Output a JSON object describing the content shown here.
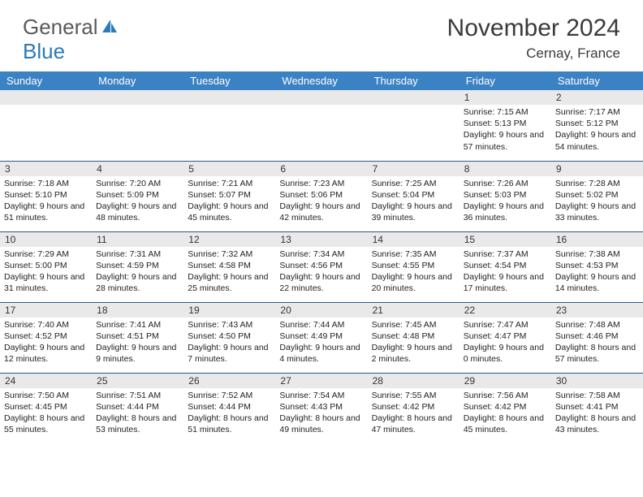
{
  "logo": {
    "part1": "General",
    "part2": "Blue"
  },
  "title": "November 2024",
  "location": "Cernay, France",
  "colors": {
    "header_bg": "#3b82c4",
    "header_fg": "#ffffff",
    "daynum_bg": "#e9e9e9",
    "row_border": "#2b5a8a",
    "logo_gray": "#5a5a5a",
    "logo_blue": "#2a7bb8"
  },
  "weekdays": [
    "Sunday",
    "Monday",
    "Tuesday",
    "Wednesday",
    "Thursday",
    "Friday",
    "Saturday"
  ],
  "weeks": [
    [
      null,
      null,
      null,
      null,
      null,
      {
        "n": "1",
        "sr": "7:15 AM",
        "ss": "5:13 PM",
        "dl": "9 hours and 57 minutes."
      },
      {
        "n": "2",
        "sr": "7:17 AM",
        "ss": "5:12 PM",
        "dl": "9 hours and 54 minutes."
      }
    ],
    [
      {
        "n": "3",
        "sr": "7:18 AM",
        "ss": "5:10 PM",
        "dl": "9 hours and 51 minutes."
      },
      {
        "n": "4",
        "sr": "7:20 AM",
        "ss": "5:09 PM",
        "dl": "9 hours and 48 minutes."
      },
      {
        "n": "5",
        "sr": "7:21 AM",
        "ss": "5:07 PM",
        "dl": "9 hours and 45 minutes."
      },
      {
        "n": "6",
        "sr": "7:23 AM",
        "ss": "5:06 PM",
        "dl": "9 hours and 42 minutes."
      },
      {
        "n": "7",
        "sr": "7:25 AM",
        "ss": "5:04 PM",
        "dl": "9 hours and 39 minutes."
      },
      {
        "n": "8",
        "sr": "7:26 AM",
        "ss": "5:03 PM",
        "dl": "9 hours and 36 minutes."
      },
      {
        "n": "9",
        "sr": "7:28 AM",
        "ss": "5:02 PM",
        "dl": "9 hours and 33 minutes."
      }
    ],
    [
      {
        "n": "10",
        "sr": "7:29 AM",
        "ss": "5:00 PM",
        "dl": "9 hours and 31 minutes."
      },
      {
        "n": "11",
        "sr": "7:31 AM",
        "ss": "4:59 PM",
        "dl": "9 hours and 28 minutes."
      },
      {
        "n": "12",
        "sr": "7:32 AM",
        "ss": "4:58 PM",
        "dl": "9 hours and 25 minutes."
      },
      {
        "n": "13",
        "sr": "7:34 AM",
        "ss": "4:56 PM",
        "dl": "9 hours and 22 minutes."
      },
      {
        "n": "14",
        "sr": "7:35 AM",
        "ss": "4:55 PM",
        "dl": "9 hours and 20 minutes."
      },
      {
        "n": "15",
        "sr": "7:37 AM",
        "ss": "4:54 PM",
        "dl": "9 hours and 17 minutes."
      },
      {
        "n": "16",
        "sr": "7:38 AM",
        "ss": "4:53 PM",
        "dl": "9 hours and 14 minutes."
      }
    ],
    [
      {
        "n": "17",
        "sr": "7:40 AM",
        "ss": "4:52 PM",
        "dl": "9 hours and 12 minutes."
      },
      {
        "n": "18",
        "sr": "7:41 AM",
        "ss": "4:51 PM",
        "dl": "9 hours and 9 minutes."
      },
      {
        "n": "19",
        "sr": "7:43 AM",
        "ss": "4:50 PM",
        "dl": "9 hours and 7 minutes."
      },
      {
        "n": "20",
        "sr": "7:44 AM",
        "ss": "4:49 PM",
        "dl": "9 hours and 4 minutes."
      },
      {
        "n": "21",
        "sr": "7:45 AM",
        "ss": "4:48 PM",
        "dl": "9 hours and 2 minutes."
      },
      {
        "n": "22",
        "sr": "7:47 AM",
        "ss": "4:47 PM",
        "dl": "9 hours and 0 minutes."
      },
      {
        "n": "23",
        "sr": "7:48 AM",
        "ss": "4:46 PM",
        "dl": "8 hours and 57 minutes."
      }
    ],
    [
      {
        "n": "24",
        "sr": "7:50 AM",
        "ss": "4:45 PM",
        "dl": "8 hours and 55 minutes."
      },
      {
        "n": "25",
        "sr": "7:51 AM",
        "ss": "4:44 PM",
        "dl": "8 hours and 53 minutes."
      },
      {
        "n": "26",
        "sr": "7:52 AM",
        "ss": "4:44 PM",
        "dl": "8 hours and 51 minutes."
      },
      {
        "n": "27",
        "sr": "7:54 AM",
        "ss": "4:43 PM",
        "dl": "8 hours and 49 minutes."
      },
      {
        "n": "28",
        "sr": "7:55 AM",
        "ss": "4:42 PM",
        "dl": "8 hours and 47 minutes."
      },
      {
        "n": "29",
        "sr": "7:56 AM",
        "ss": "4:42 PM",
        "dl": "8 hours and 45 minutes."
      },
      {
        "n": "30",
        "sr": "7:58 AM",
        "ss": "4:41 PM",
        "dl": "8 hours and 43 minutes."
      }
    ]
  ],
  "labels": {
    "sunrise": "Sunrise:",
    "sunset": "Sunset:",
    "daylight": "Daylight:"
  }
}
